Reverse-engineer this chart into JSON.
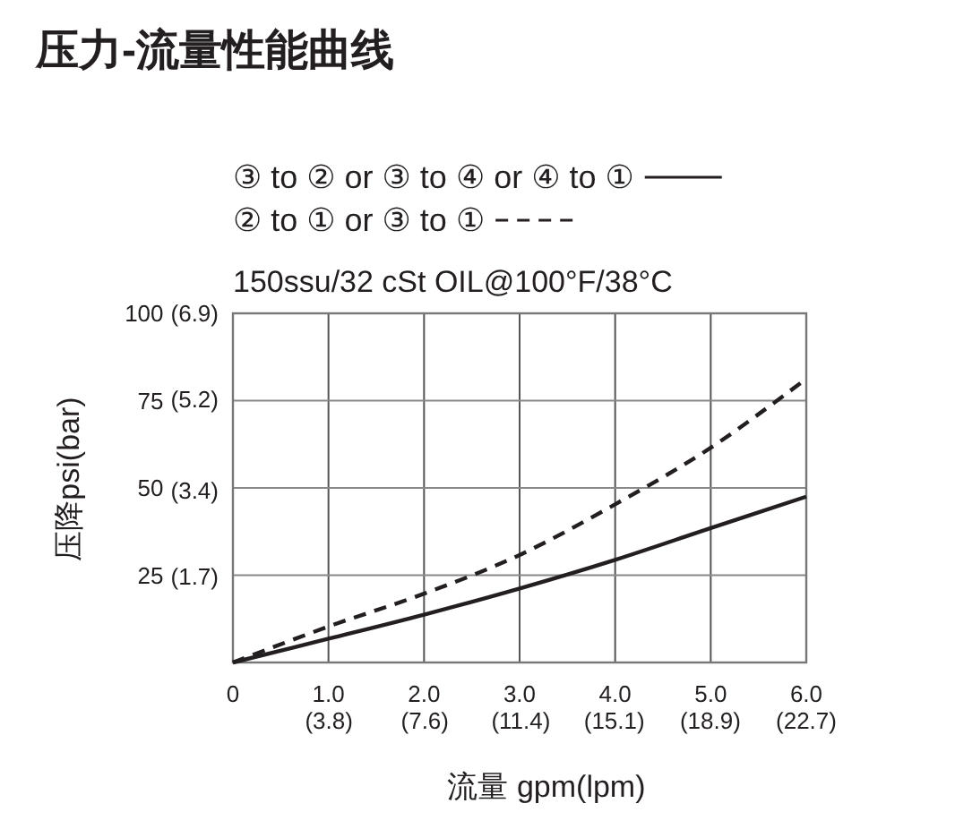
{
  "chart_data": {
    "type": "line",
    "title": "压力-流量性能曲线",
    "subtitle": "150ssu/32 cSt OIL@100°F/38°C",
    "xlabel": "流量 gpm(lpm)",
    "ylabel": "压降psi(bar)",
    "x": [
      0,
      1,
      2,
      3,
      4,
      5,
      6
    ],
    "series": [
      {
        "name": "③ to ② or ③ to ④ or ④ to ①",
        "color": "#231f20",
        "line_style": "solid",
        "values": [
          0,
          6.8,
          13.7,
          21.2,
          29.4,
          38.5,
          47.5
        ]
      },
      {
        "name": "② to ① or ③ to ①",
        "color": "#231f20",
        "line_style": "dashed",
        "values": [
          0,
          10.3,
          19.7,
          30.8,
          45.3,
          61.5,
          81.2
        ]
      }
    ],
    "xlim": [
      0,
      6
    ],
    "ylim": [
      0,
      100
    ],
    "xticks": [
      0,
      {
        "value": 1,
        "label": "1.0"
      },
      {
        "value": 2,
        "label": "2.0"
      },
      {
        "value": 3,
        "label": "3.0"
      },
      {
        "value": 4,
        "label": "4.0"
      },
      {
        "value": 5,
        "label": "5.0"
      },
      {
        "value": 6,
        "label": "6.0"
      }
    ],
    "x2lim": [
      0,
      22.7
    ],
    "x2ticks": [
      {
        "value": 3.8,
        "label": "(3.8)"
      },
      {
        "value": 7.6,
        "label": "(7.6)"
      },
      {
        "value": 11.4,
        "label": "(11.4)"
      },
      {
        "value": 15.1,
        "label": "(15.1)"
      },
      {
        "value": 18.9,
        "label": "(18.9)"
      },
      {
        "value": 22.7,
        "label": "(22.7)"
      }
    ],
    "yticks": [
      {
        "value": 0,
        "label": null
      },
      25,
      50,
      75,
      100
    ],
    "y2lim": [
      0,
      6.9
    ],
    "y2ticks": [
      {
        "value": 1.7,
        "label": "(1.7)"
      },
      {
        "value": 3.4,
        "label": "(3.4)"
      },
      {
        "value": 5.2,
        "label": "(5.2)"
      },
      {
        "value": 6.9,
        "label": "(6.9)"
      }
    ],
    "grid": true,
    "legend": "top"
  }
}
